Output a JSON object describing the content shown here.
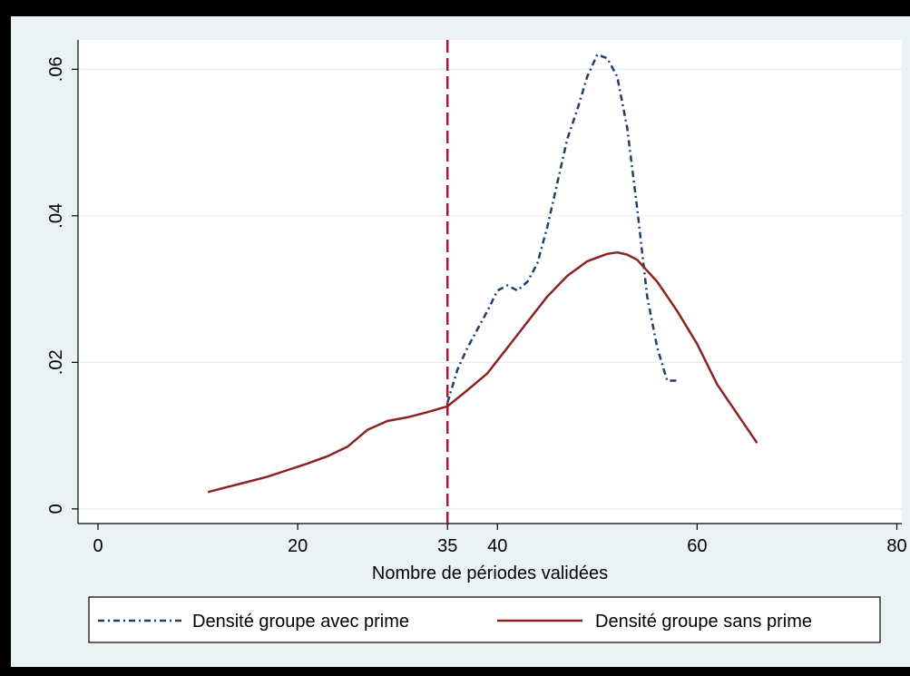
{
  "chart_data": {
    "type": "line",
    "xlabel": "Nombre de périodes validées",
    "ylabel": "",
    "xlim": [
      -2,
      80.5
    ],
    "ylim": [
      -0.002,
      0.064
    ],
    "x_ticks": [
      0,
      20,
      35,
      40,
      60,
      80
    ],
    "x_tick_labels": [
      "0",
      "20",
      "35",
      "40",
      "60",
      "80"
    ],
    "y_ticks": [
      0,
      0.02,
      0.04,
      0.06
    ],
    "y_tick_labels": [
      "0",
      ".02",
      ".04",
      ".06"
    ],
    "grid": true,
    "vline": {
      "x": 35,
      "color": "#a0183a",
      "style": "dashed"
    },
    "legend_position": "bottom",
    "series": [
      {
        "name": "Densité groupe avec prime",
        "color": "#1f3f66",
        "style": "dash-dot",
        "x": [
          35,
          36,
          37,
          38,
          39,
          40,
          41,
          42,
          43,
          44,
          45,
          46,
          47,
          48,
          49,
          50,
          51,
          52,
          53,
          54,
          55,
          56,
          57,
          58
        ],
        "y": [
          0.0145,
          0.019,
          0.022,
          0.0245,
          0.027,
          0.0298,
          0.0305,
          0.0298,
          0.031,
          0.0335,
          0.0385,
          0.0445,
          0.0505,
          0.0545,
          0.059,
          0.062,
          0.0615,
          0.059,
          0.052,
          0.041,
          0.029,
          0.022,
          0.0175,
          0.0175
        ]
      },
      {
        "name": "Densité groupe sans prime",
        "color": "#8b2323",
        "style": "solid",
        "x": [
          11,
          13,
          15,
          17,
          19,
          21,
          23,
          25,
          27,
          29,
          31,
          33,
          35,
          37,
          39,
          41,
          43,
          45,
          47,
          49,
          51,
          52,
          53,
          54,
          56,
          58,
          60,
          62,
          64,
          66
        ],
        "y": [
          0.0023,
          0.003,
          0.0037,
          0.0044,
          0.0053,
          0.0062,
          0.0072,
          0.0085,
          0.0108,
          0.012,
          0.0125,
          0.0132,
          0.014,
          0.0162,
          0.0185,
          0.022,
          0.0255,
          0.029,
          0.0318,
          0.0338,
          0.0348,
          0.035,
          0.0347,
          0.034,
          0.031,
          0.027,
          0.0225,
          0.017,
          0.013,
          0.009
        ]
      }
    ]
  }
}
